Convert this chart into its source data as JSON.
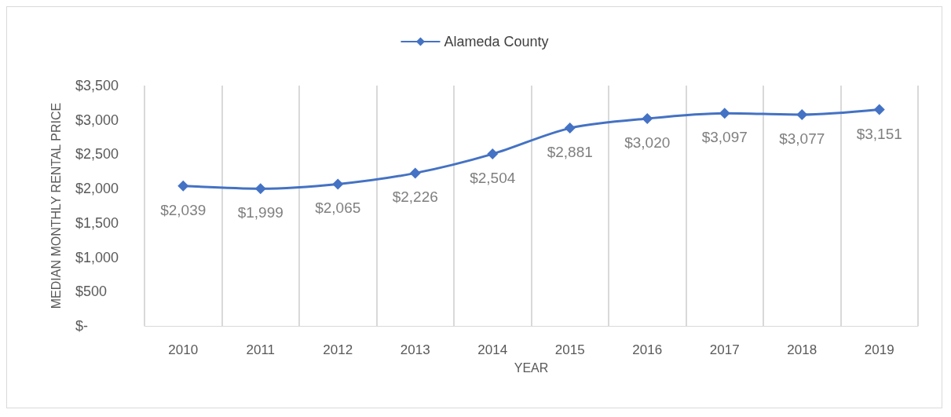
{
  "chart_data": {
    "type": "line",
    "xlabel": "YEAR",
    "ylabel": "MEDIAN MONTHLY RENTAL PRICE",
    "categories": [
      "2010",
      "2011",
      "2012",
      "2013",
      "2014",
      "2015",
      "2016",
      "2017",
      "2018",
      "2019"
    ],
    "series": [
      {
        "name": "Alameda County",
        "color": "#4472c4",
        "values": [
          2039,
          1999,
          2065,
          2226,
          2504,
          2881,
          3020,
          3097,
          3077,
          3151
        ],
        "value_labels": [
          "$2,039",
          "$1,999",
          "$2,065",
          "$2,226",
          "$2,504",
          "$2,881",
          "$3,020",
          "$3,097",
          "$3,077",
          "$3,151"
        ]
      }
    ],
    "ylim": [
      0,
      3500
    ],
    "yticks": [
      {
        "value": 0,
        "label": "$-"
      },
      {
        "value": 500,
        "label": "$500"
      },
      {
        "value": 1000,
        "label": "$1,000"
      },
      {
        "value": 1500,
        "label": "$1,500"
      },
      {
        "value": 2000,
        "label": "$2,000"
      },
      {
        "value": 2500,
        "label": "$2,500"
      },
      {
        "value": 3000,
        "label": "$3,000"
      },
      {
        "value": 3500,
        "label": "$3,500"
      }
    ],
    "grid": "x",
    "legend": "top",
    "marker": "diamond",
    "line_style": "solid"
  }
}
